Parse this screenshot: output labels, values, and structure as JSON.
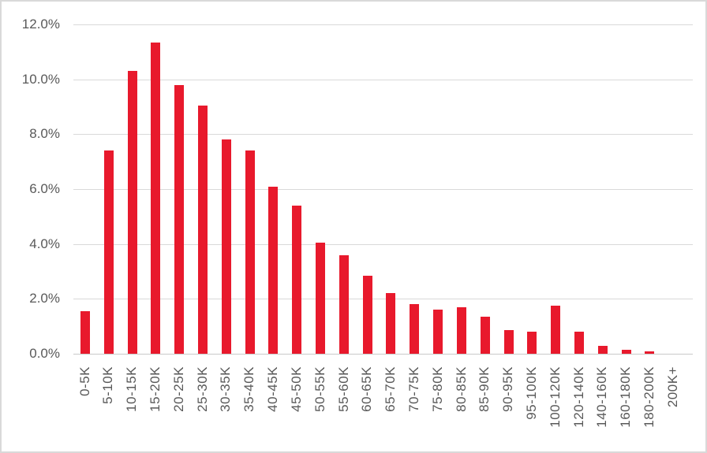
{
  "chart_data": {
    "type": "bar",
    "title": "",
    "xlabel": "",
    "ylabel": "",
    "categories": [
      "0-5K",
      "5-10K",
      "10-15K",
      "15-20K",
      "20-25K",
      "25-30K",
      "30-35K",
      "35-40K",
      "40-45K",
      "45-50K",
      "50-55K",
      "55-60K",
      "60-65K",
      "65-70K",
      "70-75K",
      "75-80K",
      "80-85K",
      "85-90K",
      "90-95K",
      "95-100K",
      "100-120K",
      "120-140K",
      "140-160K",
      "160-180K",
      "180-200K",
      "200K+"
    ],
    "values": [
      1.55,
      7.4,
      10.3,
      11.35,
      9.8,
      9.05,
      7.8,
      7.4,
      6.1,
      5.4,
      4.05,
      3.6,
      2.85,
      2.2,
      1.8,
      1.6,
      1.7,
      1.35,
      0.85,
      0.8,
      1.75,
      0.8,
      0.3,
      0.15,
      0.1,
      0
    ],
    "value_unit": "%",
    "y_ticks": [
      "12.0%",
      "10.0%",
      "8.0%",
      "6.0%",
      "4.0%",
      "2.0%",
      "0.0%"
    ],
    "ylim": [
      0,
      12
    ],
    "grid": true,
    "legend": false,
    "x_label_rotation_deg": 90
  },
  "colors": {
    "bar": "#e8192c",
    "gridline": "#d9d9d9",
    "axis_line": "#c9c9c9",
    "tick_text": "#595959",
    "frame_border": "#d9d9d9",
    "background": "#ffffff"
  }
}
